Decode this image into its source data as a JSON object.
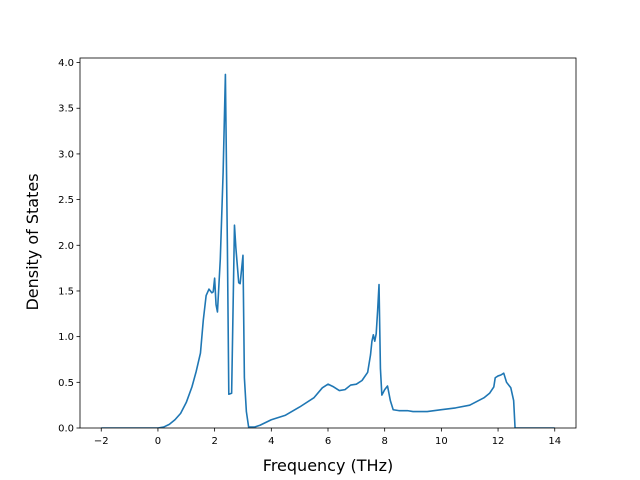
{
  "chart_data": {
    "type": "line",
    "title": "",
    "xlabel": "Frequency (THz)",
    "ylabel": "Density of States",
    "xlim": [
      -2.75,
      14.75
    ],
    "ylim": [
      0.0,
      4.05
    ],
    "xticks": [
      -2,
      0,
      2,
      4,
      6,
      8,
      10,
      12,
      14
    ],
    "yticks": [
      0.0,
      0.5,
      1.0,
      1.5,
      2.0,
      2.5,
      3.0,
      3.5,
      4.0
    ],
    "xtick_labels": [
      "−2",
      "0",
      "2",
      "4",
      "6",
      "8",
      "10",
      "12",
      "14"
    ],
    "ytick_labels": [
      "0.0",
      "0.5",
      "1.0",
      "1.5",
      "2.0",
      "2.5",
      "3.0",
      "3.5",
      "4.0"
    ],
    "grid": false,
    "legend": "none",
    "line_color": "#1f77b4",
    "series": [
      {
        "x": [
          -2.0,
          -1.0,
          -0.6,
          -0.3,
          0.0,
          0.2,
          0.4,
          0.6,
          0.8,
          1.0,
          1.2,
          1.35,
          1.5,
          1.6,
          1.7,
          1.8,
          1.9,
          1.95,
          2.0,
          2.05,
          2.1,
          2.2,
          2.3,
          2.38,
          2.45,
          2.5,
          2.6,
          2.7,
          2.75,
          2.85,
          2.9,
          3.0,
          3.05,
          3.12,
          3.2,
          3.3,
          3.4,
          3.6,
          3.8,
          4.0,
          4.5,
          5.0,
          5.5,
          5.8,
          6.0,
          6.2,
          6.4,
          6.6,
          6.8,
          7.0,
          7.2,
          7.4,
          7.5,
          7.55,
          7.6,
          7.65,
          7.7,
          7.75,
          7.8,
          7.85,
          7.9,
          8.0,
          8.1,
          8.2,
          8.3,
          8.5,
          8.8,
          9.0,
          9.5,
          10.0,
          10.5,
          11.0,
          11.5,
          11.7,
          11.85,
          11.9,
          12.0,
          12.1,
          12.2,
          12.3,
          12.45,
          12.55,
          12.6,
          13.0,
          14.0
        ],
        "y": [
          0.0,
          0.0,
          0.0,
          0.0,
          0.0,
          0.01,
          0.04,
          0.09,
          0.16,
          0.28,
          0.45,
          0.62,
          0.82,
          1.18,
          1.45,
          1.52,
          1.48,
          1.49,
          1.64,
          1.35,
          1.27,
          1.85,
          2.8,
          3.87,
          2.0,
          0.37,
          0.38,
          2.22,
          1.97,
          1.59,
          1.58,
          1.89,
          0.55,
          0.18,
          0.01,
          0.01,
          0.01,
          0.03,
          0.06,
          0.09,
          0.14,
          0.23,
          0.33,
          0.44,
          0.48,
          0.45,
          0.41,
          0.42,
          0.47,
          0.48,
          0.52,
          0.61,
          0.8,
          0.95,
          1.02,
          0.95,
          1.03,
          1.28,
          1.57,
          0.65,
          0.36,
          0.42,
          0.46,
          0.3,
          0.2,
          0.19,
          0.19,
          0.18,
          0.18,
          0.2,
          0.22,
          0.25,
          0.33,
          0.38,
          0.45,
          0.55,
          0.57,
          0.58,
          0.6,
          0.5,
          0.44,
          0.3,
          0.0,
          0.0,
          0.0
        ]
      }
    ]
  }
}
